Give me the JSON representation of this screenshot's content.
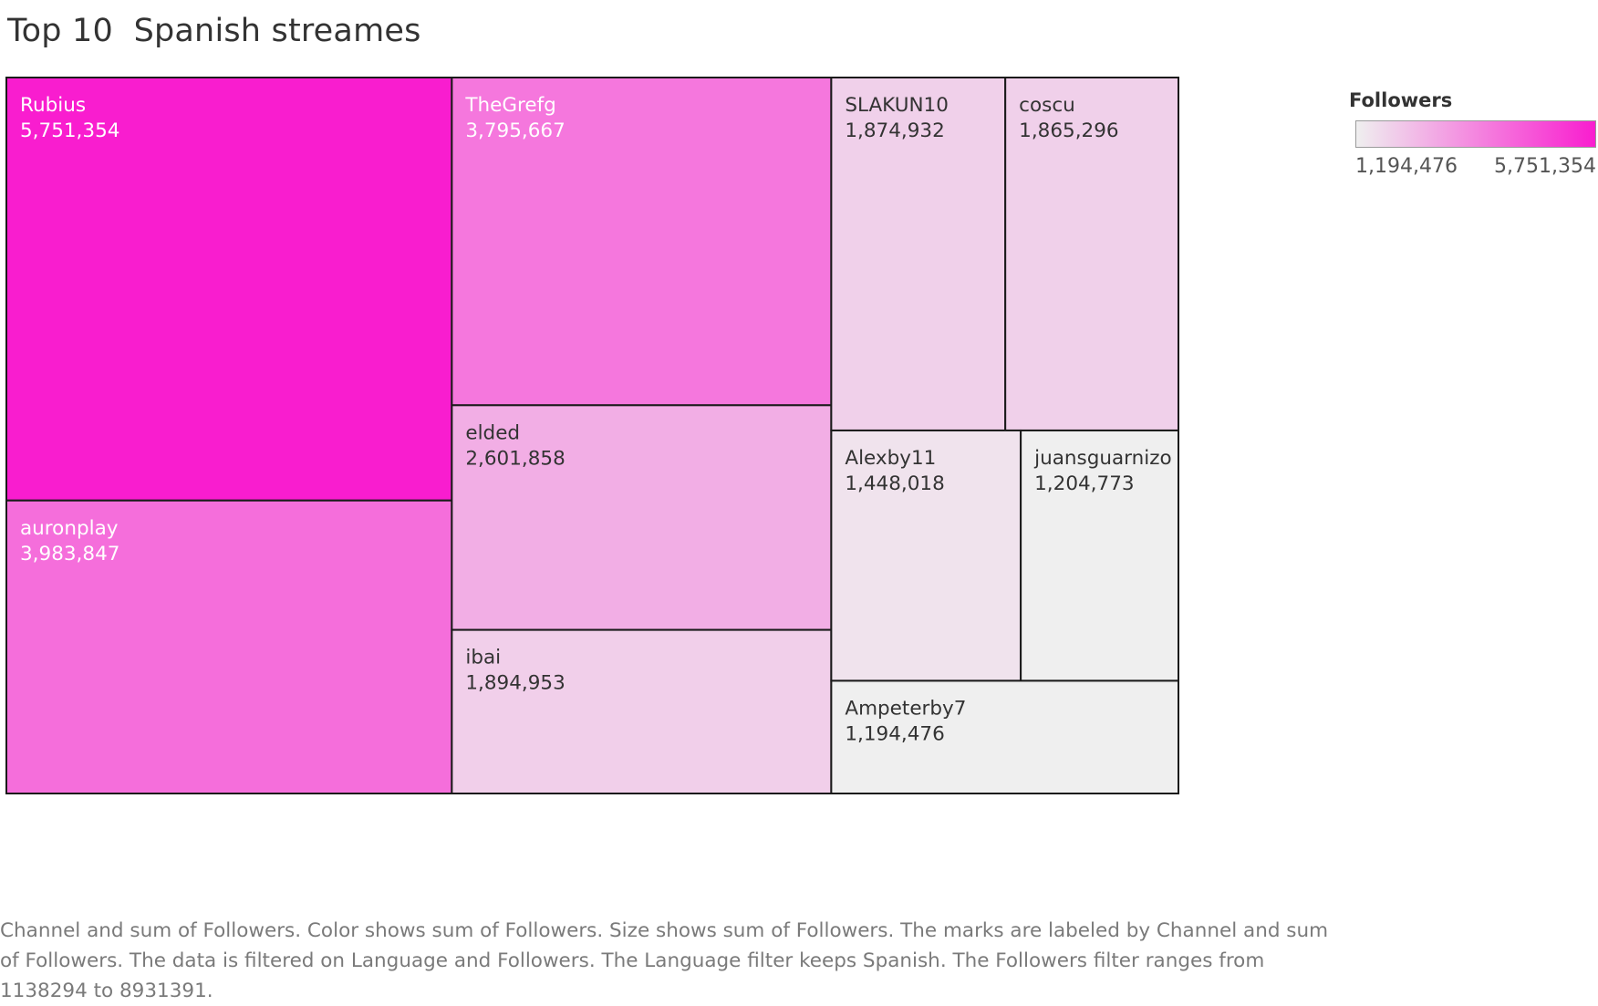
{
  "title": "Top 10  Spanish streames",
  "legend": {
    "title": "Followers",
    "min_label": "1,194,476",
    "max_label": "5,751,354",
    "color_low": "#efefef",
    "color_high": "#f91dcf"
  },
  "caption": "Channel and sum of Followers.  Color shows sum of Followers.  Size shows sum of Followers.  The marks are labeled by Channel and sum of Followers. The data is filtered on Language and Followers. The Language filter keeps Spanish. The Followers filter ranges from 1138294 to 8931391.",
  "chart_data": {
    "type": "treemap",
    "title": "Top 10  Spanish streames",
    "size_measure": "sum of Followers",
    "color_measure": "sum of Followers",
    "color_range": [
      1194476,
      5751354
    ],
    "items": [
      {
        "channel": "Rubius",
        "followers": 5751354,
        "label": "5,751,354"
      },
      {
        "channel": "auronplay",
        "followers": 3983847,
        "label": "3,983,847"
      },
      {
        "channel": "TheGrefg",
        "followers": 3795667,
        "label": "3,795,667"
      },
      {
        "channel": "elded",
        "followers": 2601858,
        "label": "2,601,858"
      },
      {
        "channel": "ibai",
        "followers": 1894953,
        "label": "1,894,953"
      },
      {
        "channel": "SLAKUN10",
        "followers": 1874932,
        "label": "1,874,932"
      },
      {
        "channel": "coscu",
        "followers": 1865296,
        "label": "1,865,296"
      },
      {
        "channel": "Alexby11",
        "followers": 1448018,
        "label": "1,448,018"
      },
      {
        "channel": "juansguarnizo",
        "followers": 1204773,
        "label": "1,204,773"
      },
      {
        "channel": "Ampeterby7",
        "followers": 1194476,
        "label": "1,194,476"
      }
    ]
  }
}
